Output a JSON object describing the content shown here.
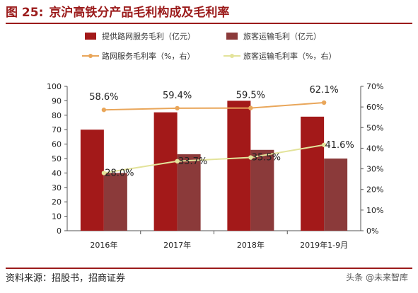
{
  "figure": {
    "number": "图 25:",
    "title": "京沪高铁分产品毛利构成及毛利率"
  },
  "source": "资料来源：招股书，招商证券",
  "watermark": "头条 @未来智库",
  "colors": {
    "bar1": "#a31919",
    "bar2": "#8b3a3a",
    "line1": "#e9a65a",
    "line2": "#e3e39a"
  },
  "chart_data": {
    "type": "bar",
    "categories": [
      "2016年",
      "2017年",
      "2018年",
      "2019年1-9月"
    ],
    "series": [
      {
        "name": "提供路网服务毛利（亿元）",
        "type": "bar",
        "axis": "left",
        "values": [
          70,
          82,
          90,
          79
        ]
      },
      {
        "name": "旅客运输毛利（亿元）",
        "type": "bar",
        "axis": "left",
        "values": [
          40,
          53,
          56,
          50
        ]
      },
      {
        "name": "路网服务毛利率（%，右）",
        "type": "line",
        "axis": "right",
        "values": [
          58.6,
          59.4,
          59.5,
          62.1
        ],
        "labels": [
          "58.6%",
          "59.4%",
          "59.5%",
          "62.1%"
        ]
      },
      {
        "name": "旅客运输毛利率（%，右）",
        "type": "line",
        "axis": "right",
        "values": [
          28.0,
          33.7,
          35.5,
          41.6
        ],
        "labels": [
          "28.0%",
          "33.7%",
          "35.5%",
          "41.6%"
        ]
      }
    ],
    "ylim": [
      0,
      100
    ],
    "yticks": [
      "0",
      "10",
      "20",
      "30",
      "40",
      "50",
      "60",
      "70",
      "80",
      "90",
      "100"
    ],
    "y2lim": [
      0,
      70
    ],
    "y2ticks": [
      "0%",
      "10%",
      "20%",
      "30%",
      "40%",
      "50%",
      "60%",
      "70%"
    ],
    "legend": "top",
    "grid": false
  }
}
